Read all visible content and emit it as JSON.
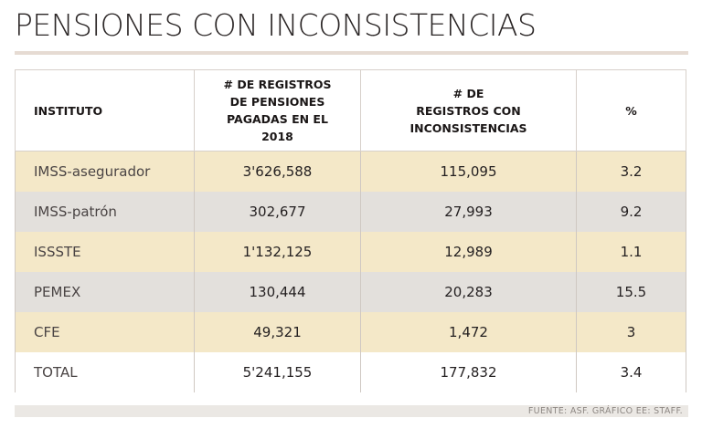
{
  "chart_data": {
    "type": "table",
    "title": "PENSIONES CON INCONSISTENCIAS",
    "columns": [
      "INSTITUTO",
      "# DE REGISTROS\nDE PENSIONES\nPAGADAS EN EL\n2018",
      "# DE\nREGISTROS CON\nINCONSISTENCIAS",
      "%"
    ],
    "rows": [
      [
        "IMSS-asegurador",
        "3'626,588",
        "115,095",
        "3.2"
      ],
      [
        "IMSS-patrón",
        "302,677",
        "27,993",
        "9.2"
      ],
      [
        "ISSSTE",
        "1'132,125",
        "12,989",
        "1.1"
      ],
      [
        "PEMEX",
        "130,444",
        "20,283",
        "15.5"
      ],
      [
        "CFE",
        "49,321",
        "1,472",
        "3"
      ],
      [
        "TOTAL",
        "5'241,155",
        "177,832",
        "3.4"
      ]
    ],
    "source": "FUENTE: ASF. GRÁFICO EE: STAFF."
  },
  "colors": {
    "row_odd": "#f4e8c8",
    "row_even": "#e3e0dc",
    "row_total": "#ffffff"
  }
}
